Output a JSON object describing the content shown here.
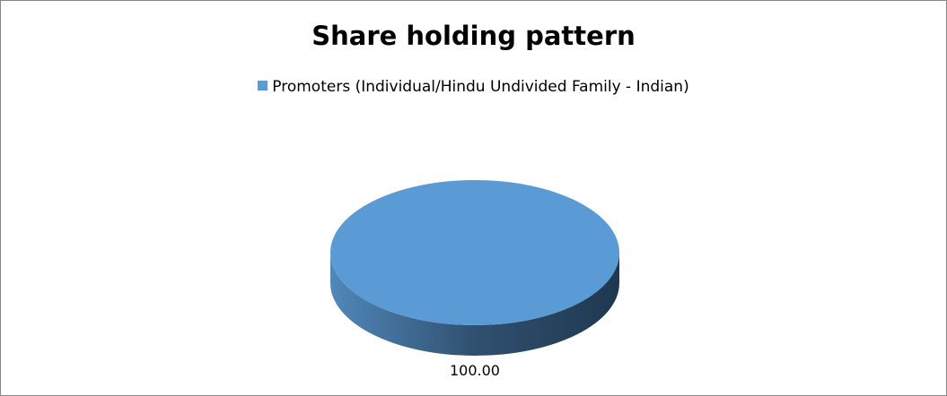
{
  "chart_data": {
    "type": "pie",
    "style": "3d",
    "title": "Share holding pattern",
    "legend_position": "top",
    "categories": [
      "Promoters (Individual/Hindu Undivided Family - Indian)"
    ],
    "values": [
      100.0
    ],
    "data_labels": [
      "100.00"
    ],
    "colors": [
      "#5B9BD5"
    ]
  }
}
